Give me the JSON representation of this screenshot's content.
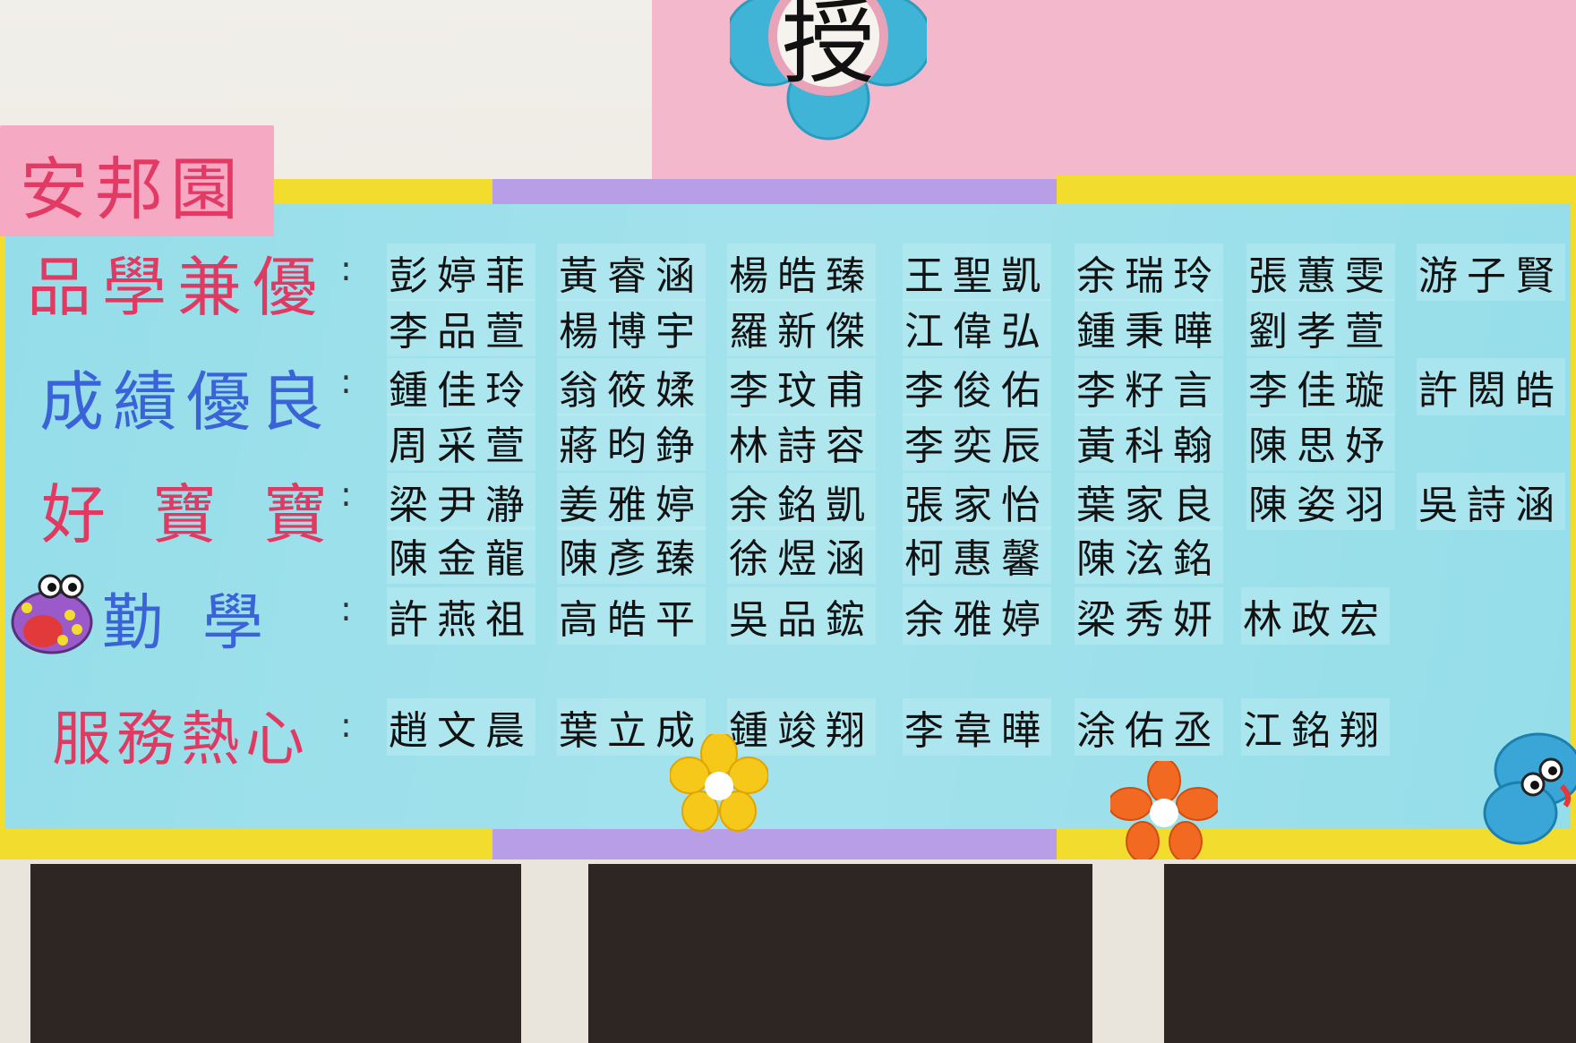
{
  "sign": {
    "award_glyph": "授"
  },
  "class_tag": "安邦園",
  "categories": [
    {
      "label": "品學兼優",
      "color": "#e03a63",
      "names": [
        "彭婷菲",
        "黃睿涵",
        "楊皓臻",
        "王聖凱",
        "余瑞玲",
        "張蕙雯",
        "游子賢",
        "李品萱",
        "楊博宇",
        "羅新傑",
        "江偉弘",
        "鍾秉曄",
        "劉孝萱"
      ]
    },
    {
      "label": "成績優良",
      "color": "#3b63d8",
      "names": [
        "鍾佳玲",
        "翁筱媃",
        "李玟甫",
        "李俊佑",
        "李籽言",
        "李佳璇",
        "許閎皓",
        "周采萱",
        "蔣昀錚",
        "林詩容",
        "李奕辰",
        "黃科翰",
        "陳思妤"
      ]
    },
    {
      "label": "好寶寶",
      "color": "#e03a63",
      "names": [
        "梁尹瀞",
        "姜雅婷",
        "余銘凱",
        "張家怡",
        "葉家良",
        "陳姿羽",
        "吳詩涵",
        "陳金龍",
        "陳彥臻",
        "徐煜涵",
        "柯惠馨",
        "陳泫銘"
      ]
    },
    {
      "label": "勤學",
      "color": "#3b63d8",
      "names": [
        "許燕祖",
        "高皓平",
        "吳品鋐",
        "余雅婷",
        "梁秀妍",
        "林政宏"
      ]
    },
    {
      "label": "服務熱心",
      "color": "#e03a63",
      "names": [
        "趙文晨",
        "葉立成",
        "鍾竣翔",
        "李韋曄",
        "涂佑丞",
        "江銘翔"
      ]
    }
  ],
  "separator": ":"
}
